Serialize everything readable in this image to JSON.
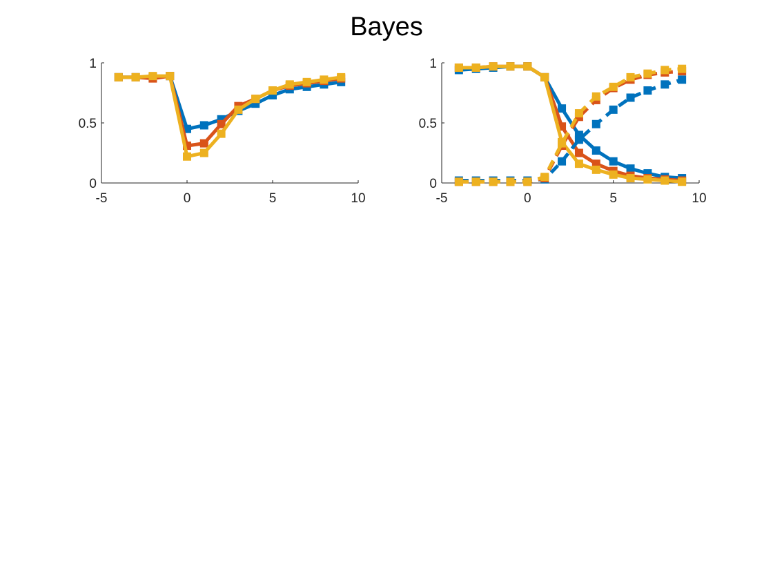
{
  "figure": {
    "title": "Bayes"
  },
  "colors": {
    "blue": "#0072BD",
    "orange": "#D95319",
    "yellow": "#EDB120",
    "axis": "#222222"
  },
  "chart_data": [
    {
      "type": "line",
      "title": "",
      "xlabel": "",
      "ylabel": "",
      "xlim": [
        -5,
        10
      ],
      "ylim": [
        0,
        1
      ],
      "xticks": [
        -5,
        0,
        5,
        10
      ],
      "yticks": [
        0,
        0.5,
        1
      ],
      "xtick_labels": [
        "-5",
        "0",
        "5",
        "10"
      ],
      "ytick_labels": [
        "0",
        "0.5",
        "1"
      ],
      "grid": false,
      "series": [
        {
          "color": "#0072BD",
          "dash": "solid",
          "marker": "square",
          "x": [
            -4,
            -3,
            -2,
            -1,
            0,
            1,
            2,
            3,
            4,
            5,
            6,
            7,
            8,
            9
          ],
          "y": [
            0.88,
            0.88,
            0.88,
            0.89,
            0.45,
            0.48,
            0.53,
            0.6,
            0.66,
            0.73,
            0.78,
            0.8,
            0.82,
            0.84
          ]
        },
        {
          "color": "#D95319",
          "dash": "solid",
          "marker": "square",
          "x": [
            -4,
            -3,
            -2,
            -1,
            0,
            1,
            2,
            3,
            4,
            5,
            6,
            7,
            8,
            9
          ],
          "y": [
            0.88,
            0.88,
            0.87,
            0.89,
            0.31,
            0.33,
            0.49,
            0.64,
            0.7,
            0.77,
            0.81,
            0.83,
            0.85,
            0.87
          ]
        },
        {
          "color": "#EDB120",
          "dash": "solid",
          "marker": "square",
          "x": [
            -4,
            -3,
            -2,
            -1,
            0,
            1,
            2,
            3,
            4,
            5,
            6,
            7,
            8,
            9
          ],
          "y": [
            0.88,
            0.88,
            0.89,
            0.89,
            0.22,
            0.25,
            0.41,
            0.61,
            0.7,
            0.77,
            0.82,
            0.84,
            0.86,
            0.88
          ]
        }
      ]
    },
    {
      "type": "line",
      "title": "",
      "xlabel": "",
      "ylabel": "",
      "xlim": [
        -5,
        10
      ],
      "ylim": [
        0,
        1
      ],
      "xticks": [
        -5,
        0,
        5,
        10
      ],
      "yticks": [
        0,
        0.5,
        1
      ],
      "xtick_labels": [
        "-5",
        "0",
        "5",
        "10"
      ],
      "ytick_labels": [
        "0",
        "0.5",
        "1"
      ],
      "grid": false,
      "series": [
        {
          "color": "#0072BD",
          "dash": "solid",
          "marker": "square",
          "x": [
            -4,
            -3,
            -2,
            -1,
            0,
            1,
            2,
            3,
            4,
            5,
            6,
            7,
            8,
            9
          ],
          "y": [
            0.94,
            0.95,
            0.96,
            0.97,
            0.97,
            0.88,
            0.62,
            0.4,
            0.27,
            0.18,
            0.12,
            0.08,
            0.05,
            0.04
          ]
        },
        {
          "color": "#D95319",
          "dash": "solid",
          "marker": "square",
          "x": [
            -4,
            -3,
            -2,
            -1,
            0,
            1,
            2,
            3,
            4,
            5,
            6,
            7,
            8,
            9
          ],
          "y": [
            0.96,
            0.96,
            0.97,
            0.97,
            0.97,
            0.88,
            0.47,
            0.25,
            0.16,
            0.1,
            0.06,
            0.04,
            0.03,
            0.02
          ]
        },
        {
          "color": "#EDB120",
          "dash": "solid",
          "marker": "square",
          "x": [
            -4,
            -3,
            -2,
            -1,
            0,
            1,
            2,
            3,
            4,
            5,
            6,
            7,
            8,
            9
          ],
          "y": [
            0.96,
            0.96,
            0.97,
            0.97,
            0.97,
            0.88,
            0.34,
            0.16,
            0.11,
            0.07,
            0.04,
            0.03,
            0.02,
            0.01
          ]
        },
        {
          "color": "#0072BD",
          "dash": "dashed",
          "marker": "square",
          "x": [
            -4,
            -3,
            -2,
            -1,
            0,
            1,
            2,
            3,
            4,
            5,
            6,
            7,
            8,
            9
          ],
          "y": [
            0.02,
            0.02,
            0.02,
            0.02,
            0.02,
            0.03,
            0.18,
            0.36,
            0.49,
            0.61,
            0.71,
            0.77,
            0.82,
            0.86
          ]
        },
        {
          "color": "#D95319",
          "dash": "dashed",
          "marker": "square",
          "x": [
            -4,
            -3,
            -2,
            -1,
            0,
            1,
            2,
            3,
            4,
            5,
            6,
            7,
            8,
            9
          ],
          "y": [
            0.01,
            0.01,
            0.01,
            0.01,
            0.01,
            0.04,
            0.31,
            0.55,
            0.69,
            0.79,
            0.86,
            0.9,
            0.92,
            0.93
          ]
        },
        {
          "color": "#EDB120",
          "dash": "dashed",
          "marker": "square",
          "x": [
            -4,
            -3,
            -2,
            -1,
            0,
            1,
            2,
            3,
            4,
            5,
            6,
            7,
            8,
            9
          ],
          "y": [
            0.01,
            0.01,
            0.01,
            0.01,
            0.01,
            0.05,
            0.33,
            0.58,
            0.72,
            0.8,
            0.88,
            0.91,
            0.94,
            0.95
          ]
        }
      ]
    }
  ]
}
